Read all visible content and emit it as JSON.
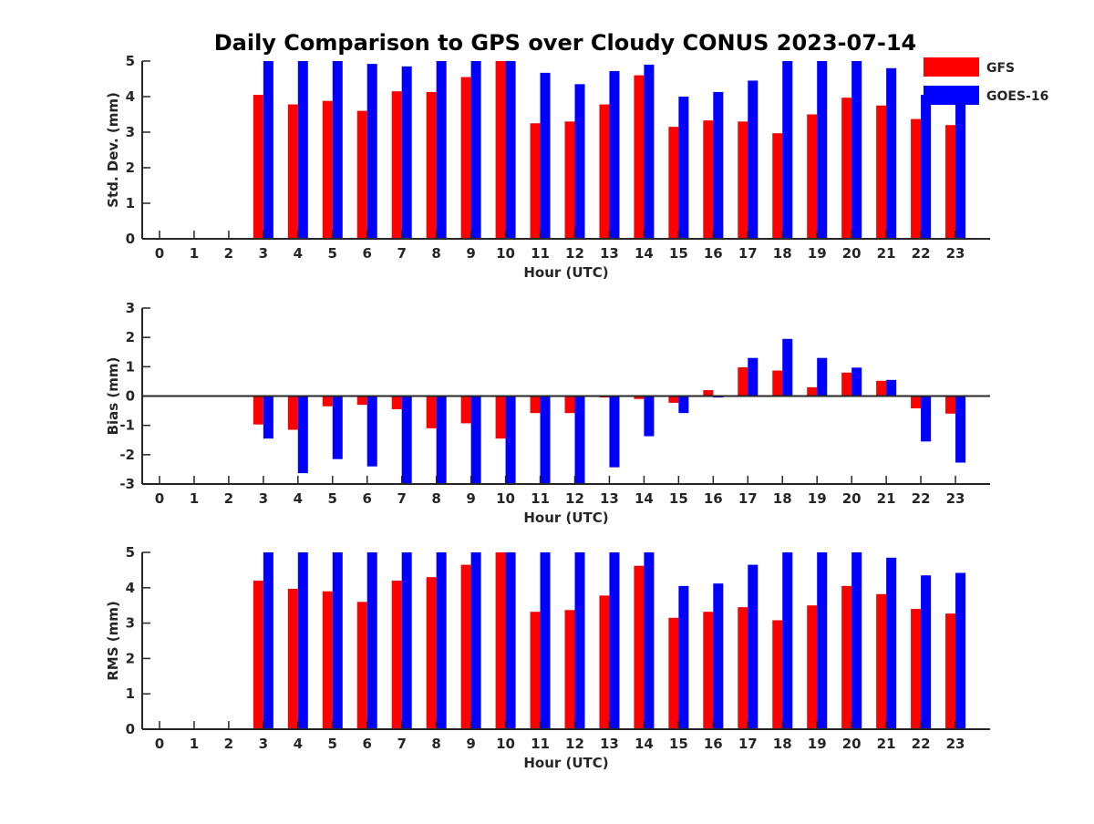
{
  "chart_data": {
    "title": "Daily Comparison to GPS over Cloudy CONUS 2023-07-14",
    "legend": {
      "placement": "top-right",
      "entries": [
        "GFS",
        "GOES-16"
      ]
    },
    "colors": {
      "GFS": "#ff0000",
      "GOES-16": "#0000ff"
    },
    "panels": [
      {
        "type": "bar",
        "ylabel": "Std. Dev. (mm)",
        "xlabel": "Hour (UTC)",
        "ylim": [
          0,
          5
        ],
        "yticks": [
          0,
          1,
          2,
          3,
          4,
          5
        ],
        "categories": [
          "0",
          "1",
          "2",
          "3",
          "4",
          "5",
          "6",
          "7",
          "8",
          "9",
          "10",
          "11",
          "12",
          "13",
          "14",
          "15",
          "16",
          "17",
          "18",
          "19",
          "20",
          "21",
          "22",
          "23"
        ],
        "series": [
          {
            "name": "GFS",
            "values": [
              null,
              null,
              null,
              4.05,
              3.78,
              3.88,
              3.6,
              4.15,
              4.13,
              4.55,
              5.0,
              3.25,
              3.3,
              3.78,
              4.6,
              3.15,
              3.33,
              3.3,
              2.97,
              3.5,
              3.97,
              3.75,
              3.37,
              3.2
            ]
          },
          {
            "name": "GOES-16",
            "values": [
              null,
              null,
              null,
              5.0,
              5.0,
              5.0,
              4.92,
              4.85,
              5.0,
              5.0,
              5.0,
              4.67,
              4.35,
              4.72,
              4.9,
              4.0,
              4.13,
              4.45,
              5.0,
              5.0,
              5.0,
              4.8,
              4.05,
              3.9
            ]
          }
        ]
      },
      {
        "type": "bar",
        "ylabel": "Bias (mm)",
        "xlabel": "Hour (UTC)",
        "ylim": [
          -3,
          3
        ],
        "yticks": [
          -3,
          -2,
          -1,
          0,
          1,
          2,
          3
        ],
        "categories": [
          "0",
          "1",
          "2",
          "3",
          "4",
          "5",
          "6",
          "7",
          "8",
          "9",
          "10",
          "11",
          "12",
          "13",
          "14",
          "15",
          "16",
          "17",
          "18",
          "19",
          "20",
          "21",
          "22",
          "23"
        ],
        "series": [
          {
            "name": "GFS",
            "values": [
              null,
              null,
              null,
              -0.97,
              -1.15,
              -0.35,
              -0.3,
              -0.45,
              -1.1,
              -0.93,
              -1.45,
              -0.58,
              -0.58,
              -0.05,
              -0.1,
              -0.23,
              0.2,
              0.98,
              0.87,
              0.3,
              0.8,
              0.52,
              -0.42,
              -0.6
            ]
          },
          {
            "name": "GOES-16",
            "values": [
              null,
              null,
              null,
              -1.45,
              -2.63,
              -2.15,
              -2.4,
              -3.0,
              -3.0,
              -3.0,
              -3.0,
              -3.0,
              -3.0,
              -2.43,
              -1.37,
              -0.58,
              -0.05,
              1.3,
              1.95,
              1.3,
              0.97,
              0.55,
              -1.55,
              -2.27
            ]
          }
        ]
      },
      {
        "type": "bar",
        "ylabel": "RMS (mm)",
        "xlabel": "Hour (UTC)",
        "ylim": [
          0,
          5
        ],
        "yticks": [
          0,
          1,
          2,
          3,
          4,
          5
        ],
        "categories": [
          "0",
          "1",
          "2",
          "3",
          "4",
          "5",
          "6",
          "7",
          "8",
          "9",
          "10",
          "11",
          "12",
          "13",
          "14",
          "15",
          "16",
          "17",
          "18",
          "19",
          "20",
          "21",
          "22",
          "23"
        ],
        "series": [
          {
            "name": "GFS",
            "values": [
              null,
              null,
              null,
              4.2,
              3.97,
              3.9,
              3.6,
              4.2,
              4.3,
              4.65,
              5.0,
              3.32,
              3.37,
              3.78,
              4.62,
              3.15,
              3.32,
              3.45,
              3.08,
              3.5,
              4.05,
              3.82,
              3.4,
              3.27
            ]
          },
          {
            "name": "GOES-16",
            "values": [
              null,
              null,
              null,
              5.0,
              5.0,
              5.0,
              5.0,
              5.0,
              5.0,
              5.0,
              5.0,
              5.0,
              5.0,
              5.0,
              5.0,
              4.05,
              4.12,
              4.65,
              5.0,
              5.0,
              5.0,
              4.85,
              4.35,
              4.42
            ]
          }
        ]
      }
    ]
  }
}
